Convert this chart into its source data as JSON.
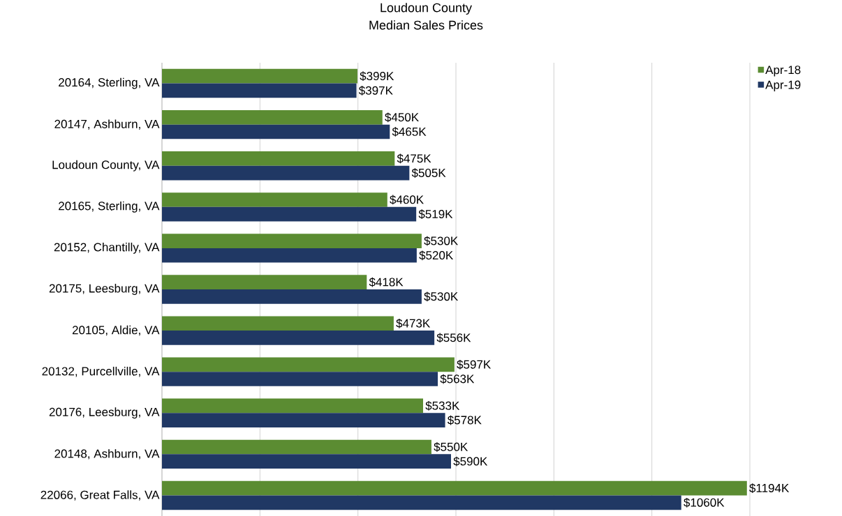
{
  "chart_data": {
    "type": "bar",
    "orientation": "horizontal",
    "title": "Loudoun County\nMedian Sales Prices",
    "categories": [
      "20164, Sterling, VA",
      "20147, Ashburn, VA",
      "Loudoun County, VA",
      "20165, Sterling, VA",
      "20152, Chantilly, VA",
      "20175, Leesburg, VA",
      "20105, Aldie, VA",
      "20132, Purcellville, VA",
      "20176, Leesburg, VA",
      "20148, Ashburn, VA",
      "22066, Great Falls, VA"
    ],
    "series": [
      {
        "name": "Apr-18",
        "color": "#5b8c32",
        "values": [
          399,
          450,
          475,
          460,
          530,
          418,
          473,
          597,
          533,
          550,
          1194
        ],
        "value_labels": [
          "$399K",
          "$450K",
          "$475K",
          "$460K",
          "$530K",
          "$418K",
          "$473K",
          "$597K",
          "$533K",
          "$550K",
          "$1194K"
        ]
      },
      {
        "name": "Apr-19",
        "color": "#203864",
        "values": [
          397,
          465,
          505,
          519,
          520,
          530,
          556,
          563,
          578,
          590,
          1060
        ],
        "value_labels": [
          "$397K",
          "$465K",
          "$505K",
          "$519K",
          "$520K",
          "$530K",
          "$556K",
          "$563K",
          "$578K",
          "$590K",
          "$1060K"
        ]
      }
    ],
    "xlim": [
      0,
      1200
    ],
    "xticks": [
      {
        "value": 0,
        "label": null
      },
      {
        "value": 200,
        "label": null
      },
      {
        "value": 400,
        "label": null
      },
      {
        "value": 600,
        "label": null
      },
      {
        "value": 800,
        "label": null
      },
      {
        "value": 1000,
        "label": null
      },
      {
        "value": 1200,
        "label": null
      }
    ],
    "grid": "x",
    "legend": "top right",
    "tick_labels": "y"
  }
}
